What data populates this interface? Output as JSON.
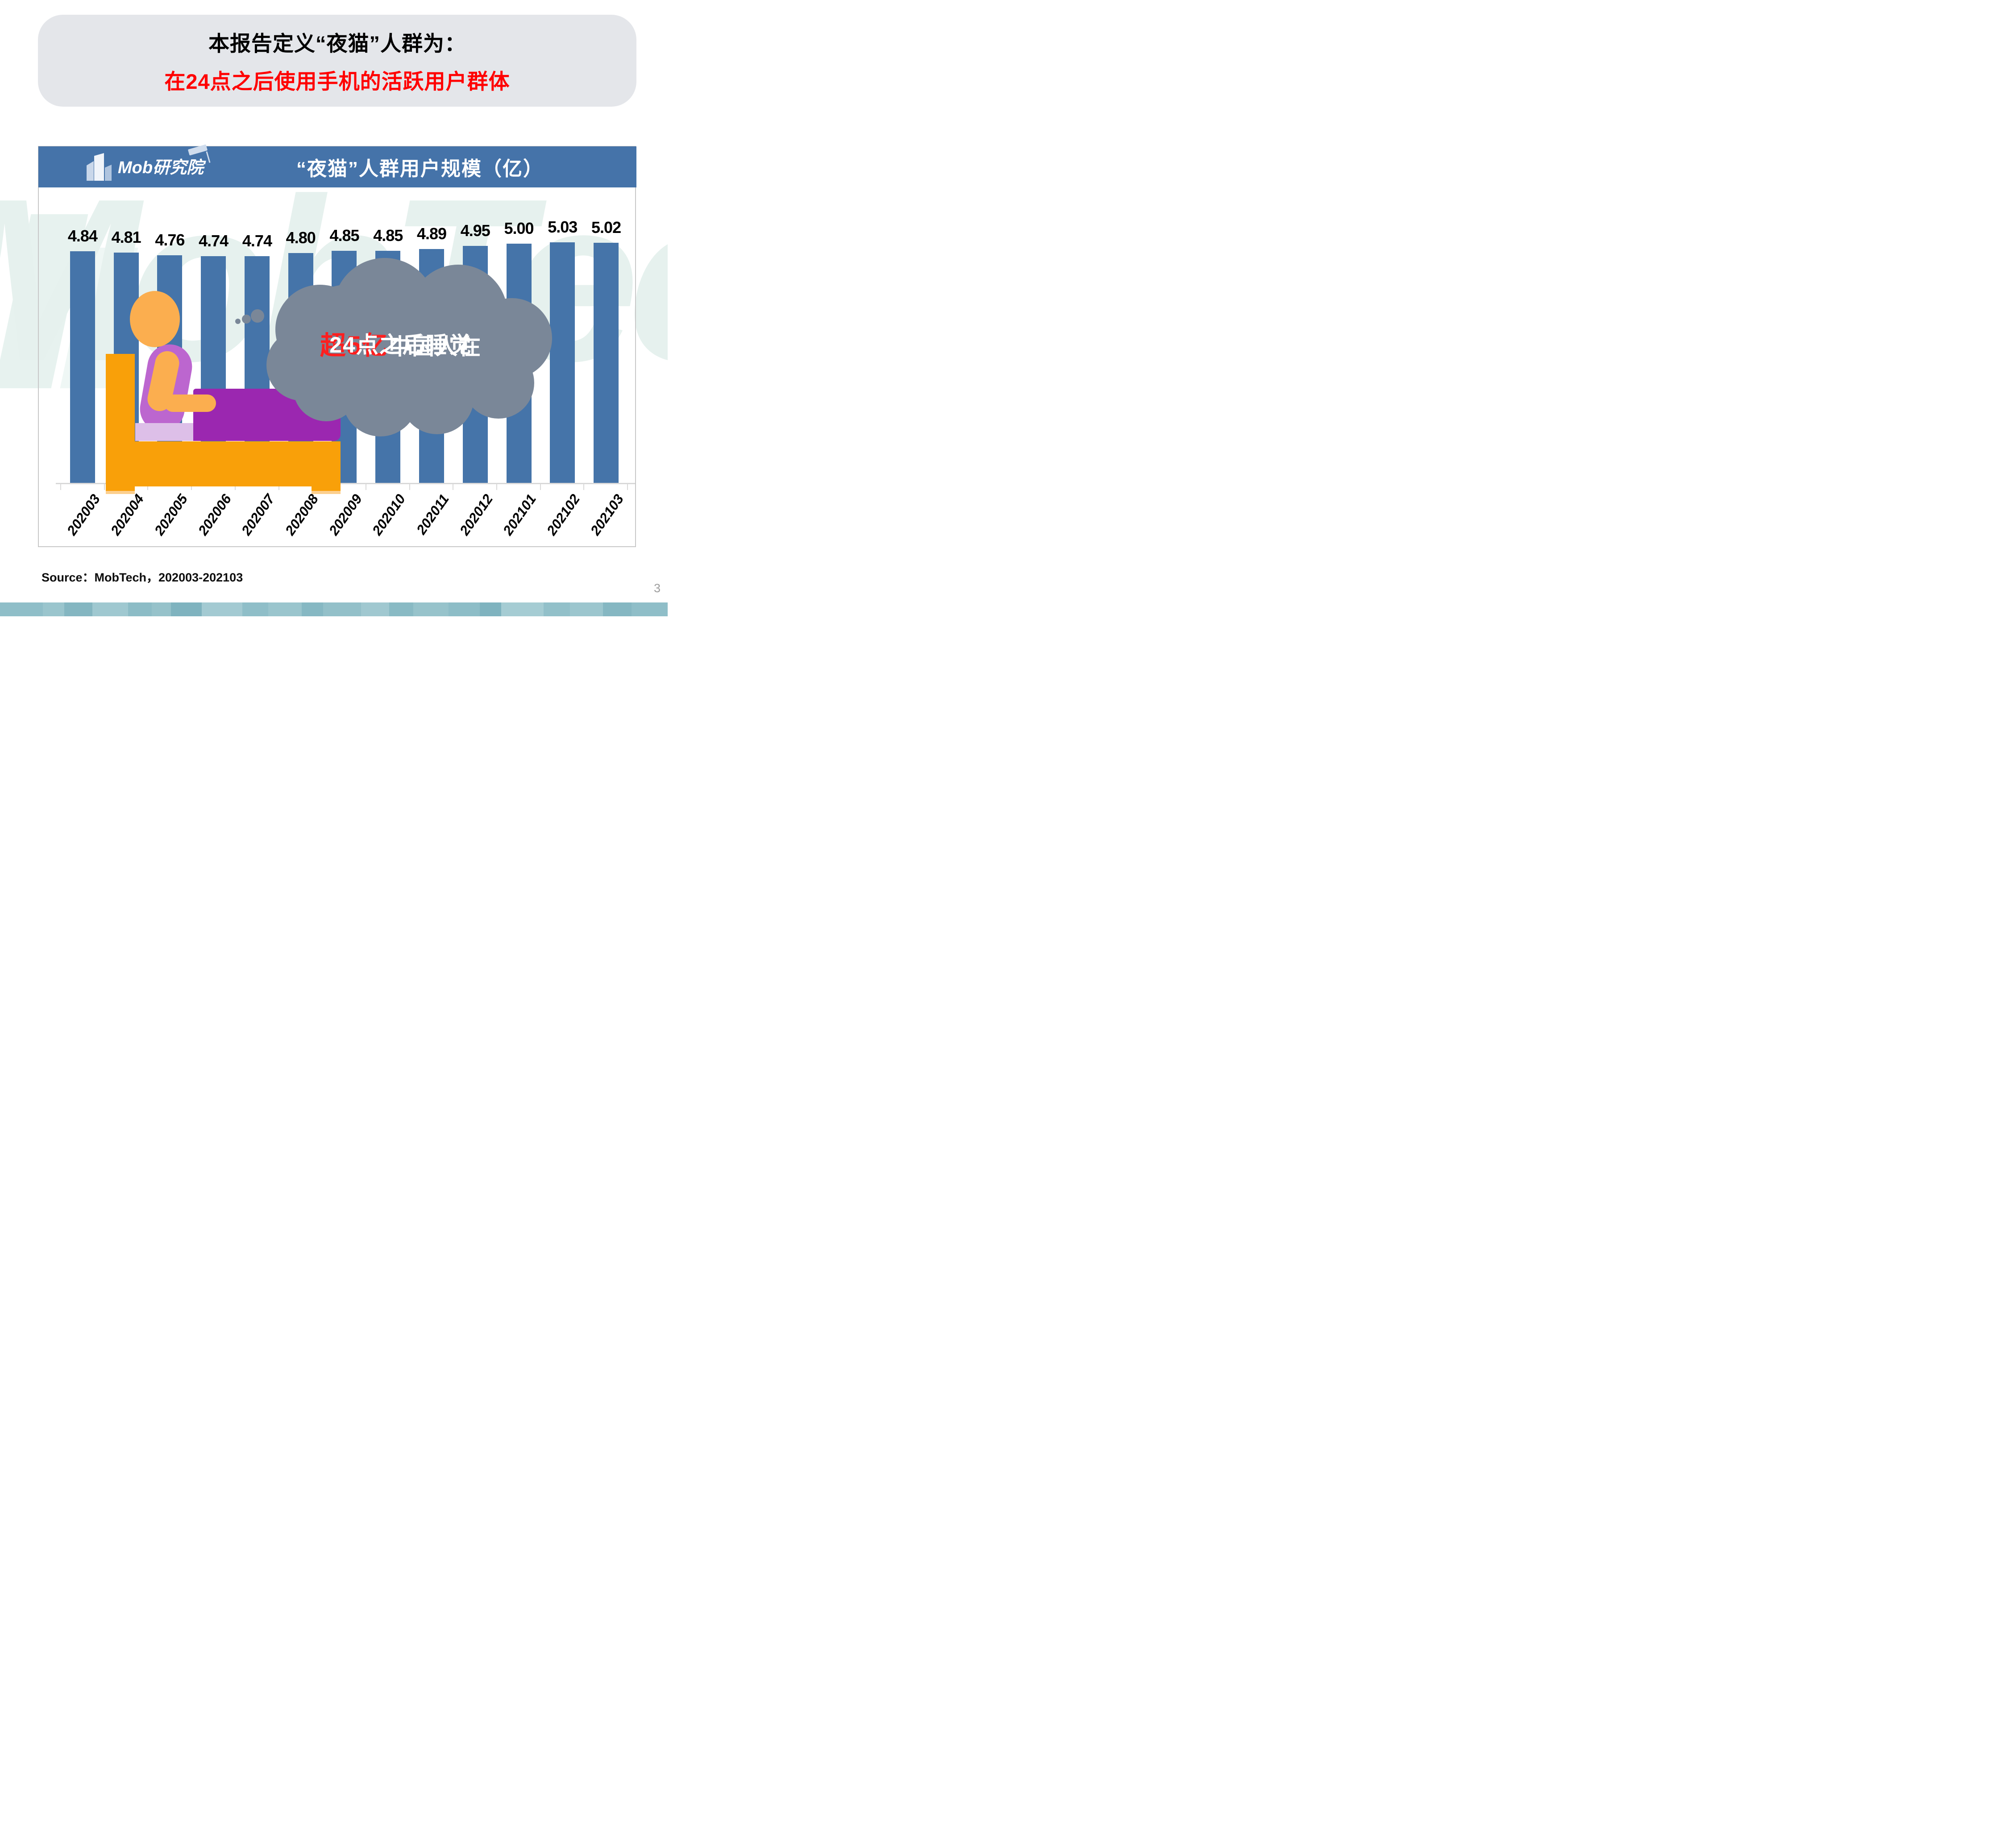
{
  "page": {
    "number": "3",
    "background": "#FFFFFF"
  },
  "title_box": {
    "line1": "本报告定义“夜猫”人群为：",
    "line2": "在24点之后使用手机的活跃用户群体",
    "bg_color": "#E4E6EA",
    "line1_color": "#000000",
    "line2_color": "#FF0000"
  },
  "header": {
    "logo_text": "Mob研究院",
    "logo_icon": "building-icon",
    "logo_cap_icon": "graduation-cap-icon",
    "title": "“夜猫”人群用户规模（亿）",
    "bg_color": "#4573A9",
    "text_color": "#FFFFFF"
  },
  "watermark": {
    "text": "MobTech袤博",
    "color": "#E6F1EE"
  },
  "chart_data": {
    "type": "bar",
    "title": "“夜猫”人群用户规模（亿）",
    "categories": [
      "202003",
      "202004",
      "202005",
      "202006",
      "202007",
      "202008",
      "202009",
      "202010",
      "202011",
      "202012",
      "202101",
      "202102",
      "202103"
    ],
    "values": [
      4.84,
      4.81,
      4.76,
      4.74,
      4.74,
      4.8,
      4.85,
      4.85,
      4.89,
      4.95,
      5.0,
      5.03,
      5.02
    ],
    "value_labels": [
      "4.84",
      "4.81",
      "4.76",
      "4.74",
      "4.74",
      "4.80",
      "4.85",
      "4.85",
      "4.89",
      "4.95",
      "5.00",
      "5.03",
      "5.02"
    ],
    "bar_color": "#4574A9",
    "xlabel": "",
    "ylabel": "",
    "ylim": [
      0,
      5.6
    ],
    "grid": false,
    "legend": null,
    "axis_line_color": "#D9D9D9"
  },
  "callout": {
    "line1_highlight": "超5亿",
    "line1_rest": "中国人在",
    "line2": "24点之后睡觉",
    "bubble_color": "#7A8798",
    "highlight_color": "#FF1F1F",
    "text_color": "#FFFFFF"
  },
  "illustration": {
    "name": "person-sleeping-in-bed",
    "bed_color": "#F9A009",
    "skin_color": "#FBAE4F",
    "blanket_color": "#9B27B0",
    "pillow_color": "#BC66CF",
    "mattress_color": "#DDBFE8"
  },
  "source": {
    "text": "Source：MobTech，202003-202103"
  },
  "bottom_bar": {
    "segments": [
      {
        "color": "#8FBEC8",
        "w": 90
      },
      {
        "color": "#9AC5CD",
        "w": 45
      },
      {
        "color": "#84B6C1",
        "w": 60
      },
      {
        "color": "#9FC8D0",
        "w": 75
      },
      {
        "color": "#8CBCC6",
        "w": 50
      },
      {
        "color": "#96C2CA",
        "w": 40
      },
      {
        "color": "#7FB3BF",
        "w": 65
      },
      {
        "color": "#A3CAD2",
        "w": 85
      },
      {
        "color": "#8FBEC8",
        "w": 55
      },
      {
        "color": "#9AC5CD",
        "w": 70
      },
      {
        "color": "#86B8C3",
        "w": 45
      },
      {
        "color": "#93C0C9",
        "w": 80
      },
      {
        "color": "#A0C8D0",
        "w": 60
      },
      {
        "color": "#89BAC4",
        "w": 50
      },
      {
        "color": "#97C3CB",
        "w": 75
      },
      {
        "color": "#8DBDC7",
        "w": 65
      },
      {
        "color": "#7FB3BF",
        "w": 45
      },
      {
        "color": "#A5CCD3",
        "w": 90
      },
      {
        "color": "#92C0C9",
        "w": 55
      },
      {
        "color": "#9CC6CE",
        "w": 70
      },
      {
        "color": "#85B7C2",
        "w": 60
      },
      {
        "color": "#8FBEC8",
        "w": 76
      }
    ]
  }
}
